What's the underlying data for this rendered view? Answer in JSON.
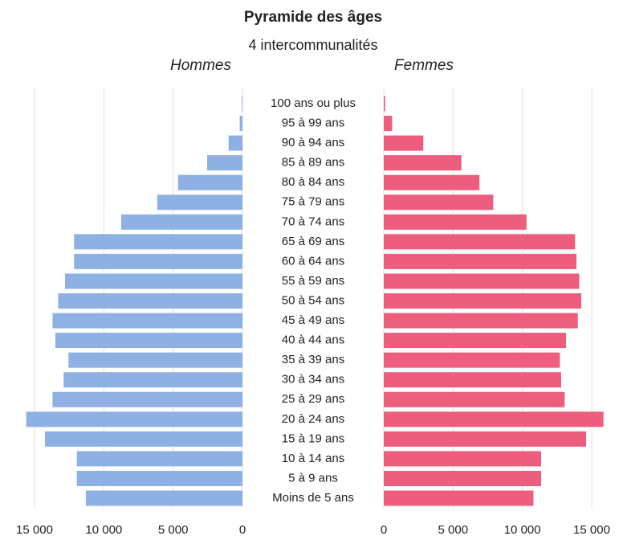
{
  "chart_data": {
    "type": "pyramid",
    "title": "Pyramide des âges",
    "subtitle": "4 intercommunalités",
    "categories": [
      "100 ans ou plus",
      "95 à 99 ans",
      "90 à 94 ans",
      "85 à 89 ans",
      "80 à 84 ans",
      "75 à 79 ans",
      "70 à 74 ans",
      "65 à 69 ans",
      "60 à 64 ans",
      "55 à 59 ans",
      "50 à 54 ans",
      "45 à 49 ans",
      "40 à 44 ans",
      "35 à 39 ans",
      "30 à 34 ans",
      "25 à 29 ans",
      "20 à 24 ans",
      "15 à 19 ans",
      "10 à 14 ans",
      "5 à 9 ans",
      "Moins de 5 ans"
    ],
    "series": [
      {
        "name": "Hommes",
        "color": "#8eb0e3",
        "values": [
          50,
          200,
          1000,
          2550,
          4650,
          6150,
          8750,
          12150,
          12150,
          12800,
          13300,
          13700,
          13500,
          12550,
          12900,
          13700,
          15600,
          14250,
          11950,
          11950,
          11300
        ]
      },
      {
        "name": "Femmes",
        "color": "#ec5d7e",
        "values": [
          100,
          600,
          2850,
          5600,
          6900,
          7900,
          10300,
          13800,
          13900,
          14100,
          14250,
          14000,
          13150,
          12700,
          12800,
          13050,
          15850,
          14600,
          11350,
          11350,
          10800
        ]
      }
    ],
    "xlim": [
      0,
      15000
    ],
    "xticks": [
      0,
      {
        "value": 5000,
        "label": "5 000"
      },
      {
        "value": 10000,
        "label": "10 000"
      },
      {
        "value": 15000,
        "label": "15 000"
      }
    ],
    "grid": true
  }
}
